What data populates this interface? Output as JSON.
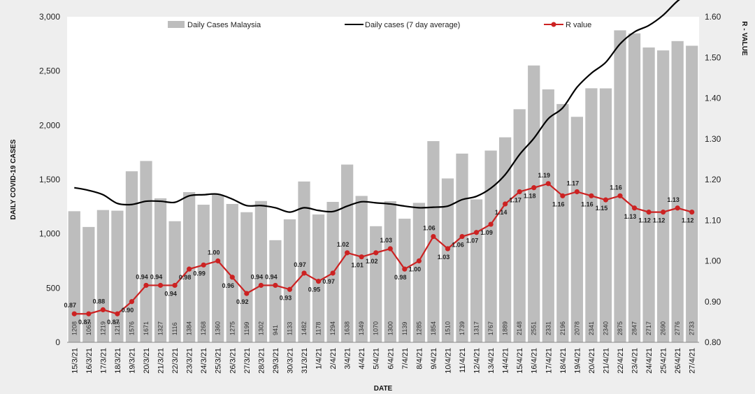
{
  "chart_data": {
    "type": "bar",
    "title": "",
    "xlabel": "DATE",
    "ylabel": "DAILY COVID-19 CASES",
    "y2label": "R - VALUE",
    "ylim": [
      0,
      3000
    ],
    "y2lim": [
      0.8,
      1.6
    ],
    "yticks": [
      "0",
      "500",
      "1,000",
      "1,500",
      "2,000",
      "2,500",
      "3,000"
    ],
    "y2ticks": [
      "0.80",
      "0.90",
      "1.00",
      "1.10",
      "1.20",
      "1.30",
      "1.40",
      "1.50",
      "1.60"
    ],
    "legend_position": "top",
    "categories": [
      "15/3/21",
      "16/3/21",
      "17/3/21",
      "18/3/21",
      "19/3/21",
      "20/3/21",
      "21/3/21",
      "22/3/21",
      "23/3/21",
      "24/3/21",
      "25/3/21",
      "26/3/21",
      "27/3/21",
      "28/3/21",
      "29/3/21",
      "30/3/21",
      "31/3/21",
      "1/4/21",
      "2/4/21",
      "3/4/21",
      "4/4/21",
      "5/4/21",
      "6/4/21",
      "7/4/21",
      "8/4/21",
      "9/4/21",
      "10/4/21",
      "11/4/21",
      "12/4/21",
      "13/4/21",
      "14/4/21",
      "15/4/21",
      "16/4/21",
      "17/4/21",
      "18/4/21",
      "19/4/21",
      "20/4/21",
      "21/4/21",
      "22/4/21",
      "23/4/21",
      "24/4/21",
      "25/4/21",
      "26/4/21",
      "27/4/21"
    ],
    "series": [
      {
        "name": "Daily Cases Malaysia",
        "type": "bar",
        "color": "#bdbdbd",
        "values": [
          1208,
          1063,
          1219,
          1213,
          1576,
          1671,
          1327,
          1116,
          1384,
          1268,
          1360,
          1275,
          1199,
          1302,
          941,
          1133,
          1482,
          1178,
          1294,
          1638,
          1349,
          1070,
          1300,
          1139,
          1285,
          1854,
          1510,
          1739,
          1317,
          1767,
          1889,
          2148,
          2551,
          2331,
          2196,
          2078,
          2341,
          2340,
          2875,
          2847,
          2717,
          2690,
          2776,
          2733
        ],
        "labels": [
          "1208",
          "1063",
          "1219",
          "1213",
          "1576",
          "1671",
          "1327",
          "1116",
          "1384",
          "1268",
          "1360",
          "1275",
          "1199",
          "1302",
          "941",
          "1133",
          "1482",
          "1178",
          "1294",
          "1638",
          "1349",
          "1070",
          "1300",
          "1139",
          "1285",
          "1854",
          "1510",
          "1739",
          "1317",
          "1767",
          "1889",
          "2148",
          "2551",
          "2331",
          "2196",
          "2078",
          "2341",
          "2340",
          "2875",
          "2847",
          "2717",
          "2690",
          "2776",
          "2733"
        ]
      },
      {
        "name": "Daily cases (7 day average)",
        "type": "line",
        "color": "#000000",
        "values": [
          1425,
          1400,
          1360,
          1280,
          1270,
          1300,
          1300,
          1290,
          1350,
          1360,
          1365,
          1320,
          1260,
          1260,
          1240,
          1200,
          1240,
          1215,
          1205,
          1255,
          1295,
          1285,
          1275,
          1255,
          1240,
          1245,
          1255,
          1315,
          1345,
          1420,
          1545,
          1730,
          1880,
          2060,
          2160,
          2350,
          2480,
          2580,
          2750,
          2860,
          2920,
          3015,
          3145,
          3235
        ]
      },
      {
        "name": "R value",
        "type": "line",
        "axis": "right",
        "color": "#cc2222",
        "values": [
          0.87,
          0.87,
          0.88,
          0.87,
          0.9,
          0.94,
          0.94,
          0.94,
          0.98,
          0.99,
          1.0,
          0.96,
          0.92,
          0.94,
          0.94,
          0.93,
          0.97,
          0.95,
          0.97,
          1.02,
          1.01,
          1.02,
          1.03,
          0.98,
          1.0,
          1.06,
          1.03,
          1.06,
          1.07,
          1.09,
          1.14,
          1.17,
          1.18,
          1.19,
          1.16,
          1.17,
          1.16,
          1.15,
          1.16,
          1.13,
          1.12,
          1.12,
          1.13,
          1.12
        ],
        "labels": [
          "0.87",
          "0.87",
          "0.88",
          "0.87",
          "0.90",
          "0.94",
          "0.94",
          "0.94",
          "0.98",
          "0.99",
          "1.00",
          "0.96",
          "0.92",
          "0.94",
          "0.94",
          "0.93",
          "0.97",
          "0.95",
          "0.97",
          "1.02",
          "1.01",
          "1.02",
          "1.03",
          "0.98",
          "1.00",
          "1.06",
          "1.03",
          "1.06",
          "1.07",
          "1.09",
          "1.14",
          "1.17",
          "1.18",
          "1.19",
          "1.16",
          "1.17",
          "1.16",
          "1.15",
          "1.16",
          "1.13",
          "1.12",
          "1.12",
          "1.13",
          "1.12"
        ]
      }
    ]
  }
}
